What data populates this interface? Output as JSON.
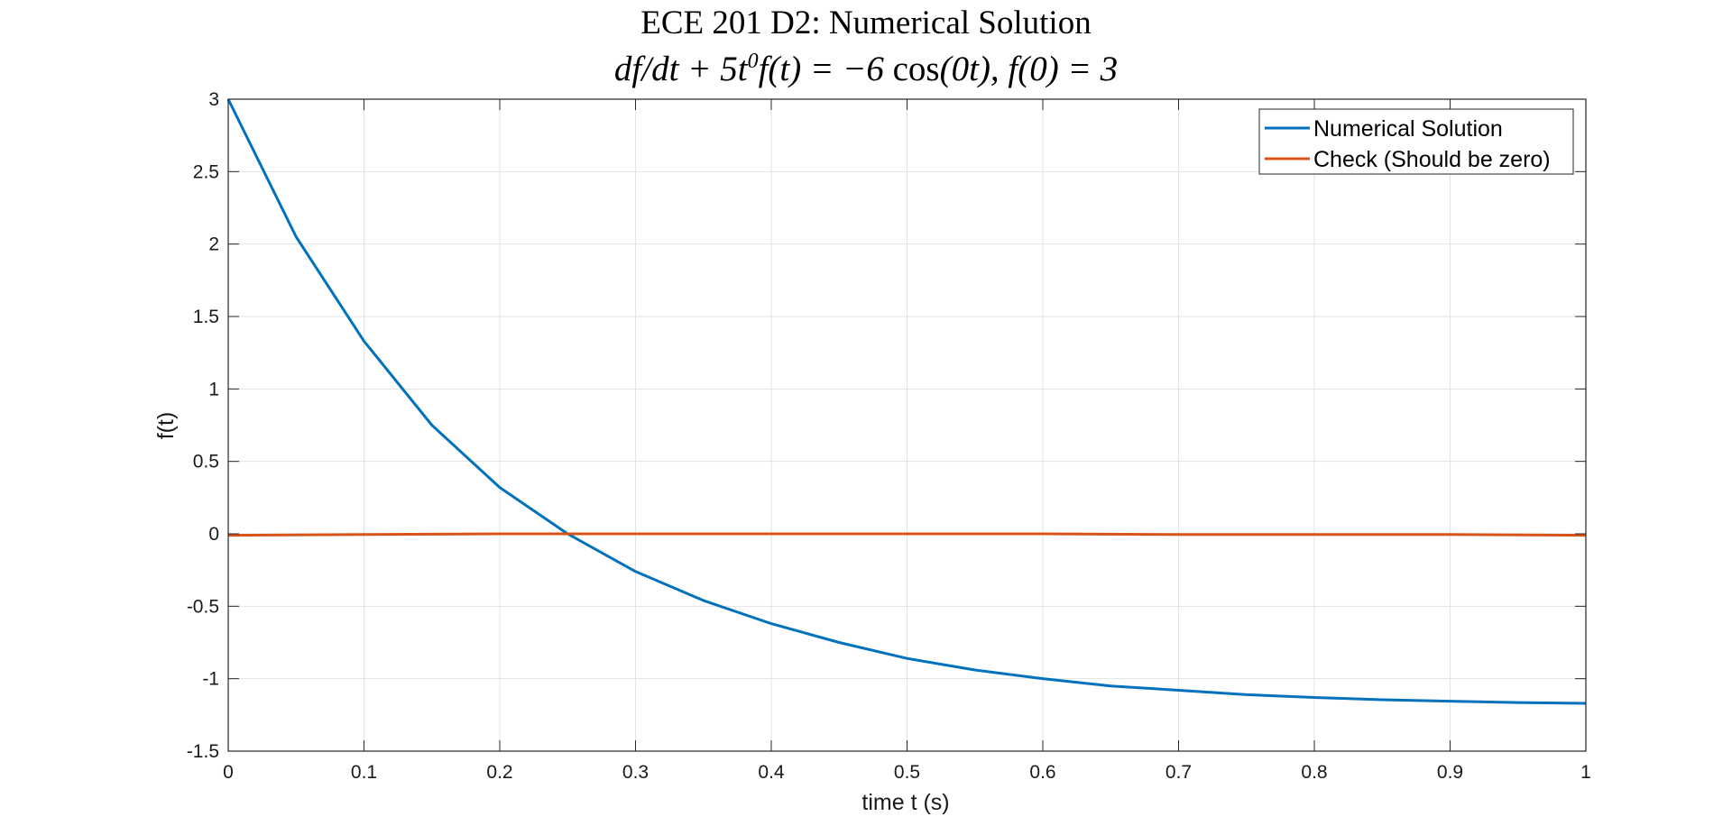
{
  "chart_data": {
    "type": "line",
    "title": "ECE 201 D2: Numerical Solution",
    "subtitle_parts": {
      "a": "df/dt + 5t",
      "sup": "0",
      "b": "f(t) = −6 ",
      "cos": "cos",
      "c": "(0t), f(0) = 3"
    },
    "xlabel": "time t (s)",
    "ylabel": "f(t)",
    "xlim": [
      0,
      1
    ],
    "ylim": [
      -1.5,
      3
    ],
    "xticks": [
      0,
      0.1,
      0.2,
      0.3,
      0.4,
      0.5,
      0.6,
      0.7,
      0.8,
      0.9,
      1
    ],
    "xtick_labels": [
      "0",
      "0.1",
      "0.2",
      "0.3",
      "0.4",
      "0.5",
      "0.6",
      "0.7",
      "0.8",
      "0.9",
      "1"
    ],
    "yticks": [
      -1.5,
      -1,
      -0.5,
      0,
      0.5,
      1,
      1.5,
      2,
      2.5,
      3
    ],
    "ytick_labels": [
      "-1.5",
      "-1",
      "-0.5",
      "0",
      "0.5",
      "1",
      "1.5",
      "2",
      "2.5",
      "3"
    ],
    "grid": true,
    "legend_position": "top-right",
    "series": [
      {
        "name": "Numerical Solution",
        "color": "#0072BD",
        "x": [
          0,
          0.05,
          0.1,
          0.15,
          0.2,
          0.25,
          0.3,
          0.35,
          0.4,
          0.45,
          0.5,
          0.55,
          0.6,
          0.65,
          0.7,
          0.75,
          0.8,
          0.85,
          0.9,
          0.95,
          1.0
        ],
        "y": [
          3.0,
          2.05,
          1.33,
          0.75,
          0.32,
          0.0,
          -0.26,
          -0.46,
          -0.62,
          -0.75,
          -0.86,
          -0.94,
          -1.0,
          -1.05,
          -1.08,
          -1.11,
          -1.13,
          -1.145,
          -1.155,
          -1.165,
          -1.17
        ]
      },
      {
        "name": "Check (Should be zero)",
        "color": "#D95319",
        "x": [
          0,
          0.1,
          0.2,
          0.3,
          0.4,
          0.5,
          0.6,
          0.7,
          0.8,
          0.9,
          1.0
        ],
        "y": [
          -0.01,
          -0.005,
          0.0,
          0.0,
          0.0,
          0.0,
          0.0,
          -0.005,
          -0.005,
          -0.005,
          -0.01
        ]
      }
    ]
  }
}
